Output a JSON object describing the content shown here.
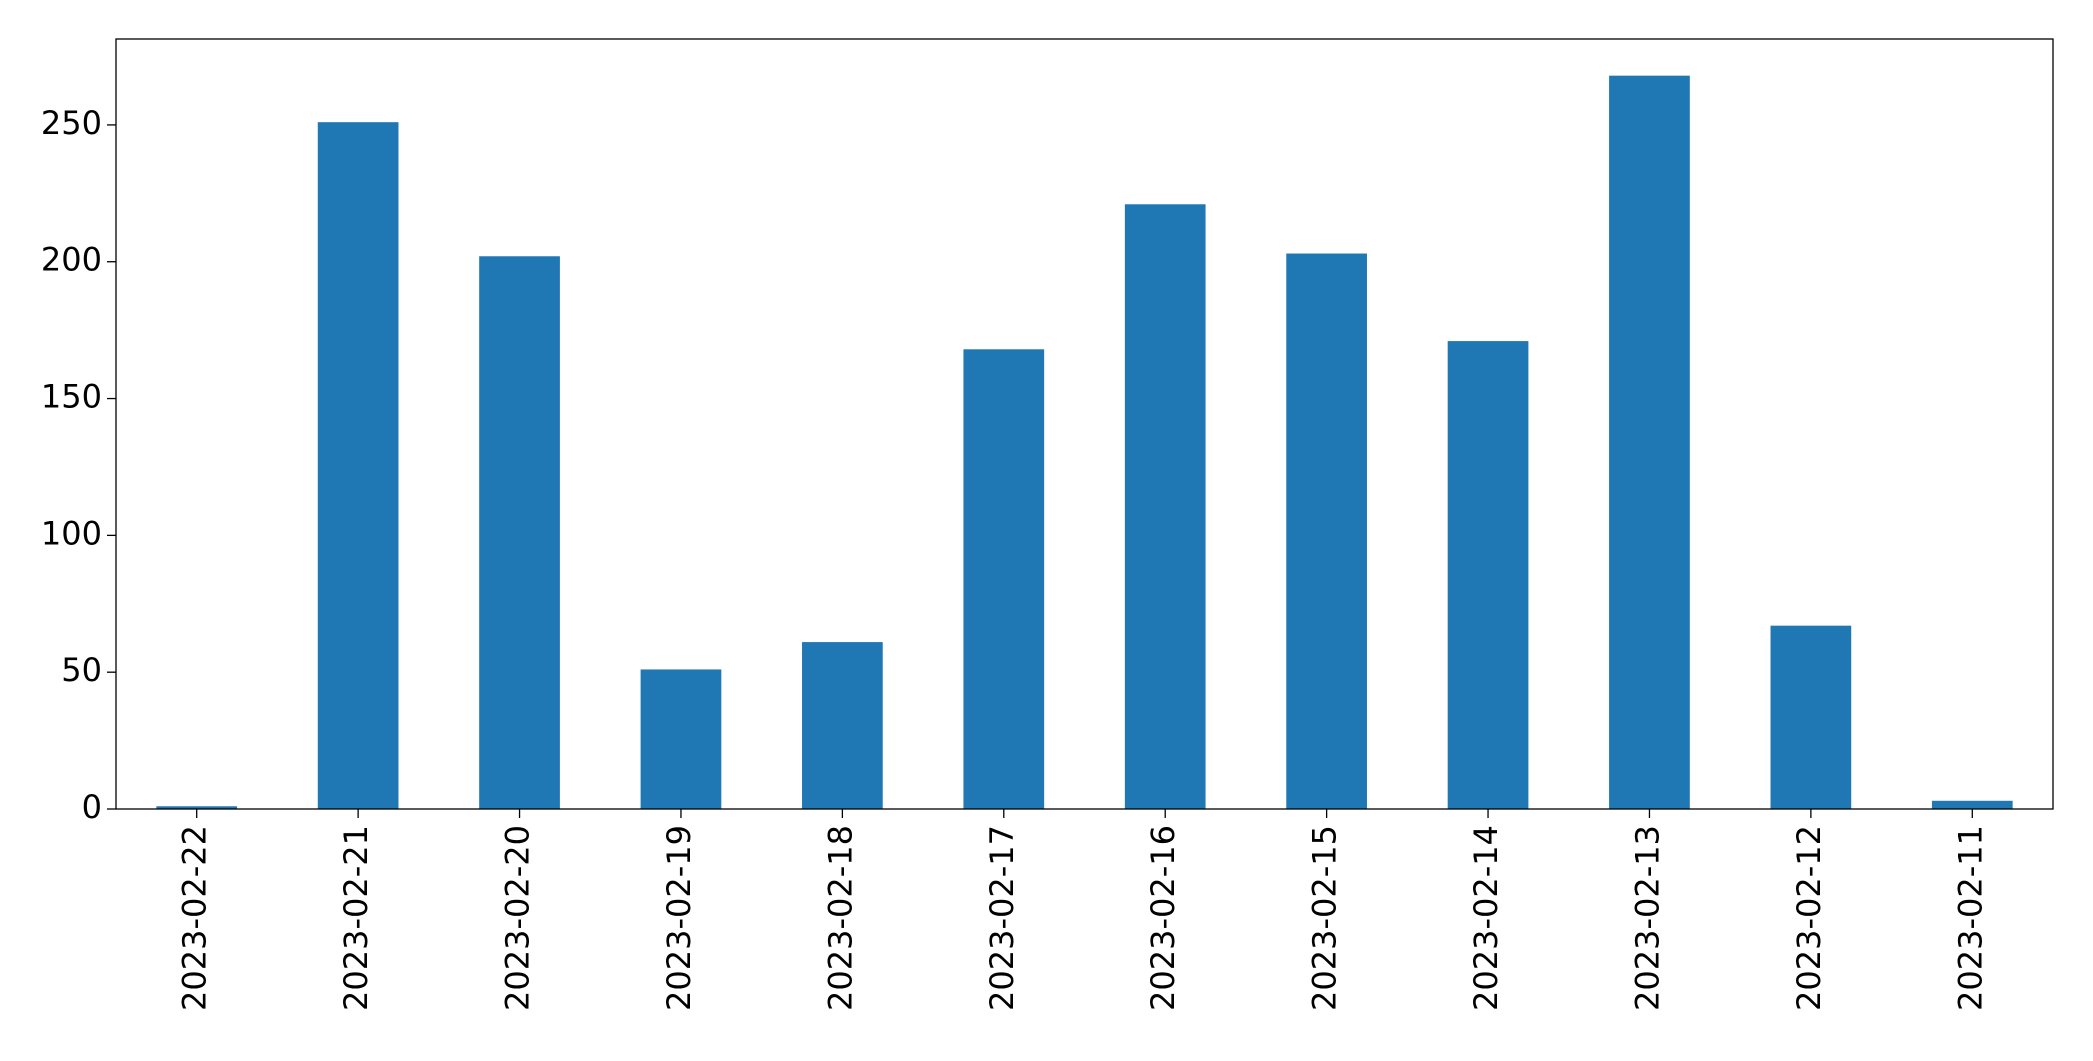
{
  "chart_data": {
    "type": "bar",
    "categories": [
      "2023-02-22",
      "2023-02-21",
      "2023-02-20",
      "2023-02-19",
      "2023-02-18",
      "2023-02-17",
      "2023-02-16",
      "2023-02-15",
      "2023-02-14",
      "2023-02-13",
      "2023-02-12",
      "2023-02-11"
    ],
    "values": [
      1,
      251,
      202,
      51,
      61,
      168,
      221,
      203,
      171,
      268,
      67,
      3
    ],
    "color": "#1f77b4",
    "ylim": [
      0,
      281.4
    ],
    "yticks": [
      0,
      50,
      100,
      150,
      200,
      250
    ],
    "grid": false
  }
}
